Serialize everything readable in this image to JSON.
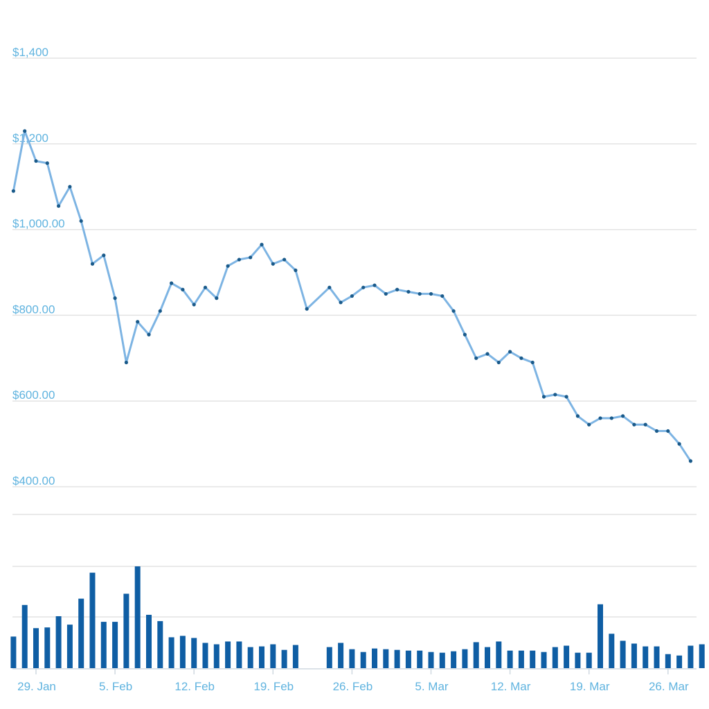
{
  "chart_data": [
    {
      "type": "line",
      "y_tick_labels": [
        "$1,400",
        "$1,200",
        "$1,000.00",
        "$800.00",
        "$600.00",
        "$400.00"
      ],
      "y_tick_values": [
        1400,
        1200,
        1000,
        800,
        600,
        400
      ],
      "ylim": [
        400,
        1400
      ],
      "x_tick_labels": [
        "29. Jan",
        "5. Feb",
        "12. Feb",
        "19. Feb",
        "26. Feb",
        "5. Mar",
        "12. Mar",
        "19. Mar",
        "26. Mar"
      ],
      "x_tick_dates": [
        "2018-01-29",
        "2018-02-05",
        "2018-02-12",
        "2018-02-19",
        "2018-02-26",
        "2018-03-05",
        "2018-03-12",
        "2018-03-19",
        "2018-03-26"
      ],
      "grid": true,
      "series": [
        {
          "color": "#7db4e3",
          "point_color": "#1a5a8a",
          "x": [
            "2018-01-27",
            "2018-01-28",
            "2018-01-29",
            "2018-01-30",
            "2018-01-31",
            "2018-02-01",
            "2018-02-02",
            "2018-02-03",
            "2018-02-04",
            "2018-02-05",
            "2018-02-06",
            "2018-02-07",
            "2018-02-08",
            "2018-02-09",
            "2018-02-10",
            "2018-02-11",
            "2018-02-12",
            "2018-02-13",
            "2018-02-14",
            "2018-02-15",
            "2018-02-16",
            "2018-02-17",
            "2018-02-18",
            "2018-02-19",
            "2018-02-20",
            "2018-02-21",
            "2018-02-22",
            "2018-02-24",
            "2018-02-25",
            "2018-02-26",
            "2018-02-27",
            "2018-02-28",
            "2018-03-01",
            "2018-03-02",
            "2018-03-03",
            "2018-03-04",
            "2018-03-05",
            "2018-03-06",
            "2018-03-07",
            "2018-03-08",
            "2018-03-09",
            "2018-03-10",
            "2018-03-11",
            "2018-03-12",
            "2018-03-13",
            "2018-03-14",
            "2018-03-15",
            "2018-03-16",
            "2018-03-17",
            "2018-03-18",
            "2018-03-19",
            "2018-03-20",
            "2018-03-21",
            "2018-03-22",
            "2018-03-23",
            "2018-03-24",
            "2018-03-25",
            "2018-03-26",
            "2018-03-27",
            "2018-03-28",
            "2018-03-29"
          ],
          "values": [
            1090,
            1230,
            1160,
            1155,
            1055,
            1100,
            1020,
            920,
            940,
            840,
            690,
            785,
            755,
            810,
            875,
            860,
            825,
            865,
            840,
            915,
            930,
            935,
            965,
            920,
            930,
            905,
            815,
            865,
            830,
            845,
            865,
            870,
            850,
            860,
            855,
            850,
            850,
            845,
            810,
            755,
            700,
            710,
            690,
            715,
            700,
            690,
            610,
            615,
            610,
            565,
            545,
            560,
            560,
            565,
            545,
            545,
            530,
            530,
            500,
            460,
            null
          ],
          "point_count": 60
        }
      ]
    },
    {
      "type": "bar",
      "x": [
        "2018-01-27",
        "2018-01-28",
        "2018-01-29",
        "2018-01-30",
        "2018-01-31",
        "2018-02-01",
        "2018-02-02",
        "2018-02-03",
        "2018-02-04",
        "2018-02-05",
        "2018-02-06",
        "2018-02-07",
        "2018-02-08",
        "2018-02-09",
        "2018-02-10",
        "2018-02-11",
        "2018-02-12",
        "2018-02-13",
        "2018-02-14",
        "2018-02-15",
        "2018-02-16",
        "2018-02-17",
        "2018-02-18",
        "2018-02-19",
        "2018-02-20",
        "2018-02-21",
        "2018-02-22",
        "2018-02-24",
        "2018-02-25",
        "2018-02-26",
        "2018-02-27",
        "2018-02-28",
        "2018-03-01",
        "2018-03-02",
        "2018-03-03",
        "2018-03-04",
        "2018-03-05",
        "2018-03-06",
        "2018-03-07",
        "2018-03-08",
        "2018-03-09",
        "2018-03-10",
        "2018-03-11",
        "2018-03-12",
        "2018-03-13",
        "2018-03-14",
        "2018-03-15",
        "2018-03-16",
        "2018-03-17",
        "2018-03-18",
        "2018-03-19",
        "2018-03-20",
        "2018-03-21",
        "2018-03-22",
        "2018-03-23",
        "2018-03-24",
        "2018-03-25",
        "2018-03-26",
        "2018-03-27",
        "2018-03-28",
        "2018-03-29"
      ],
      "values": [
        45,
        90,
        57,
        58,
        74,
        62,
        99,
        136,
        66,
        66,
        106,
        145,
        76,
        67,
        44,
        46,
        43,
        36,
        34,
        38,
        38,
        30,
        31,
        34,
        26,
        33,
        null,
        30,
        36,
        27,
        23,
        28,
        27,
        26,
        25,
        25,
        23,
        22,
        24,
        27,
        37,
        30,
        38,
        25,
        25,
        25,
        23,
        30,
        32,
        22,
        22,
        91,
        49,
        39,
        35,
        31,
        31,
        20,
        18,
        32,
        34
      ],
      "ylim": [
        0,
        145
      ],
      "color": "#0f5ea4",
      "grid": true
    }
  ]
}
